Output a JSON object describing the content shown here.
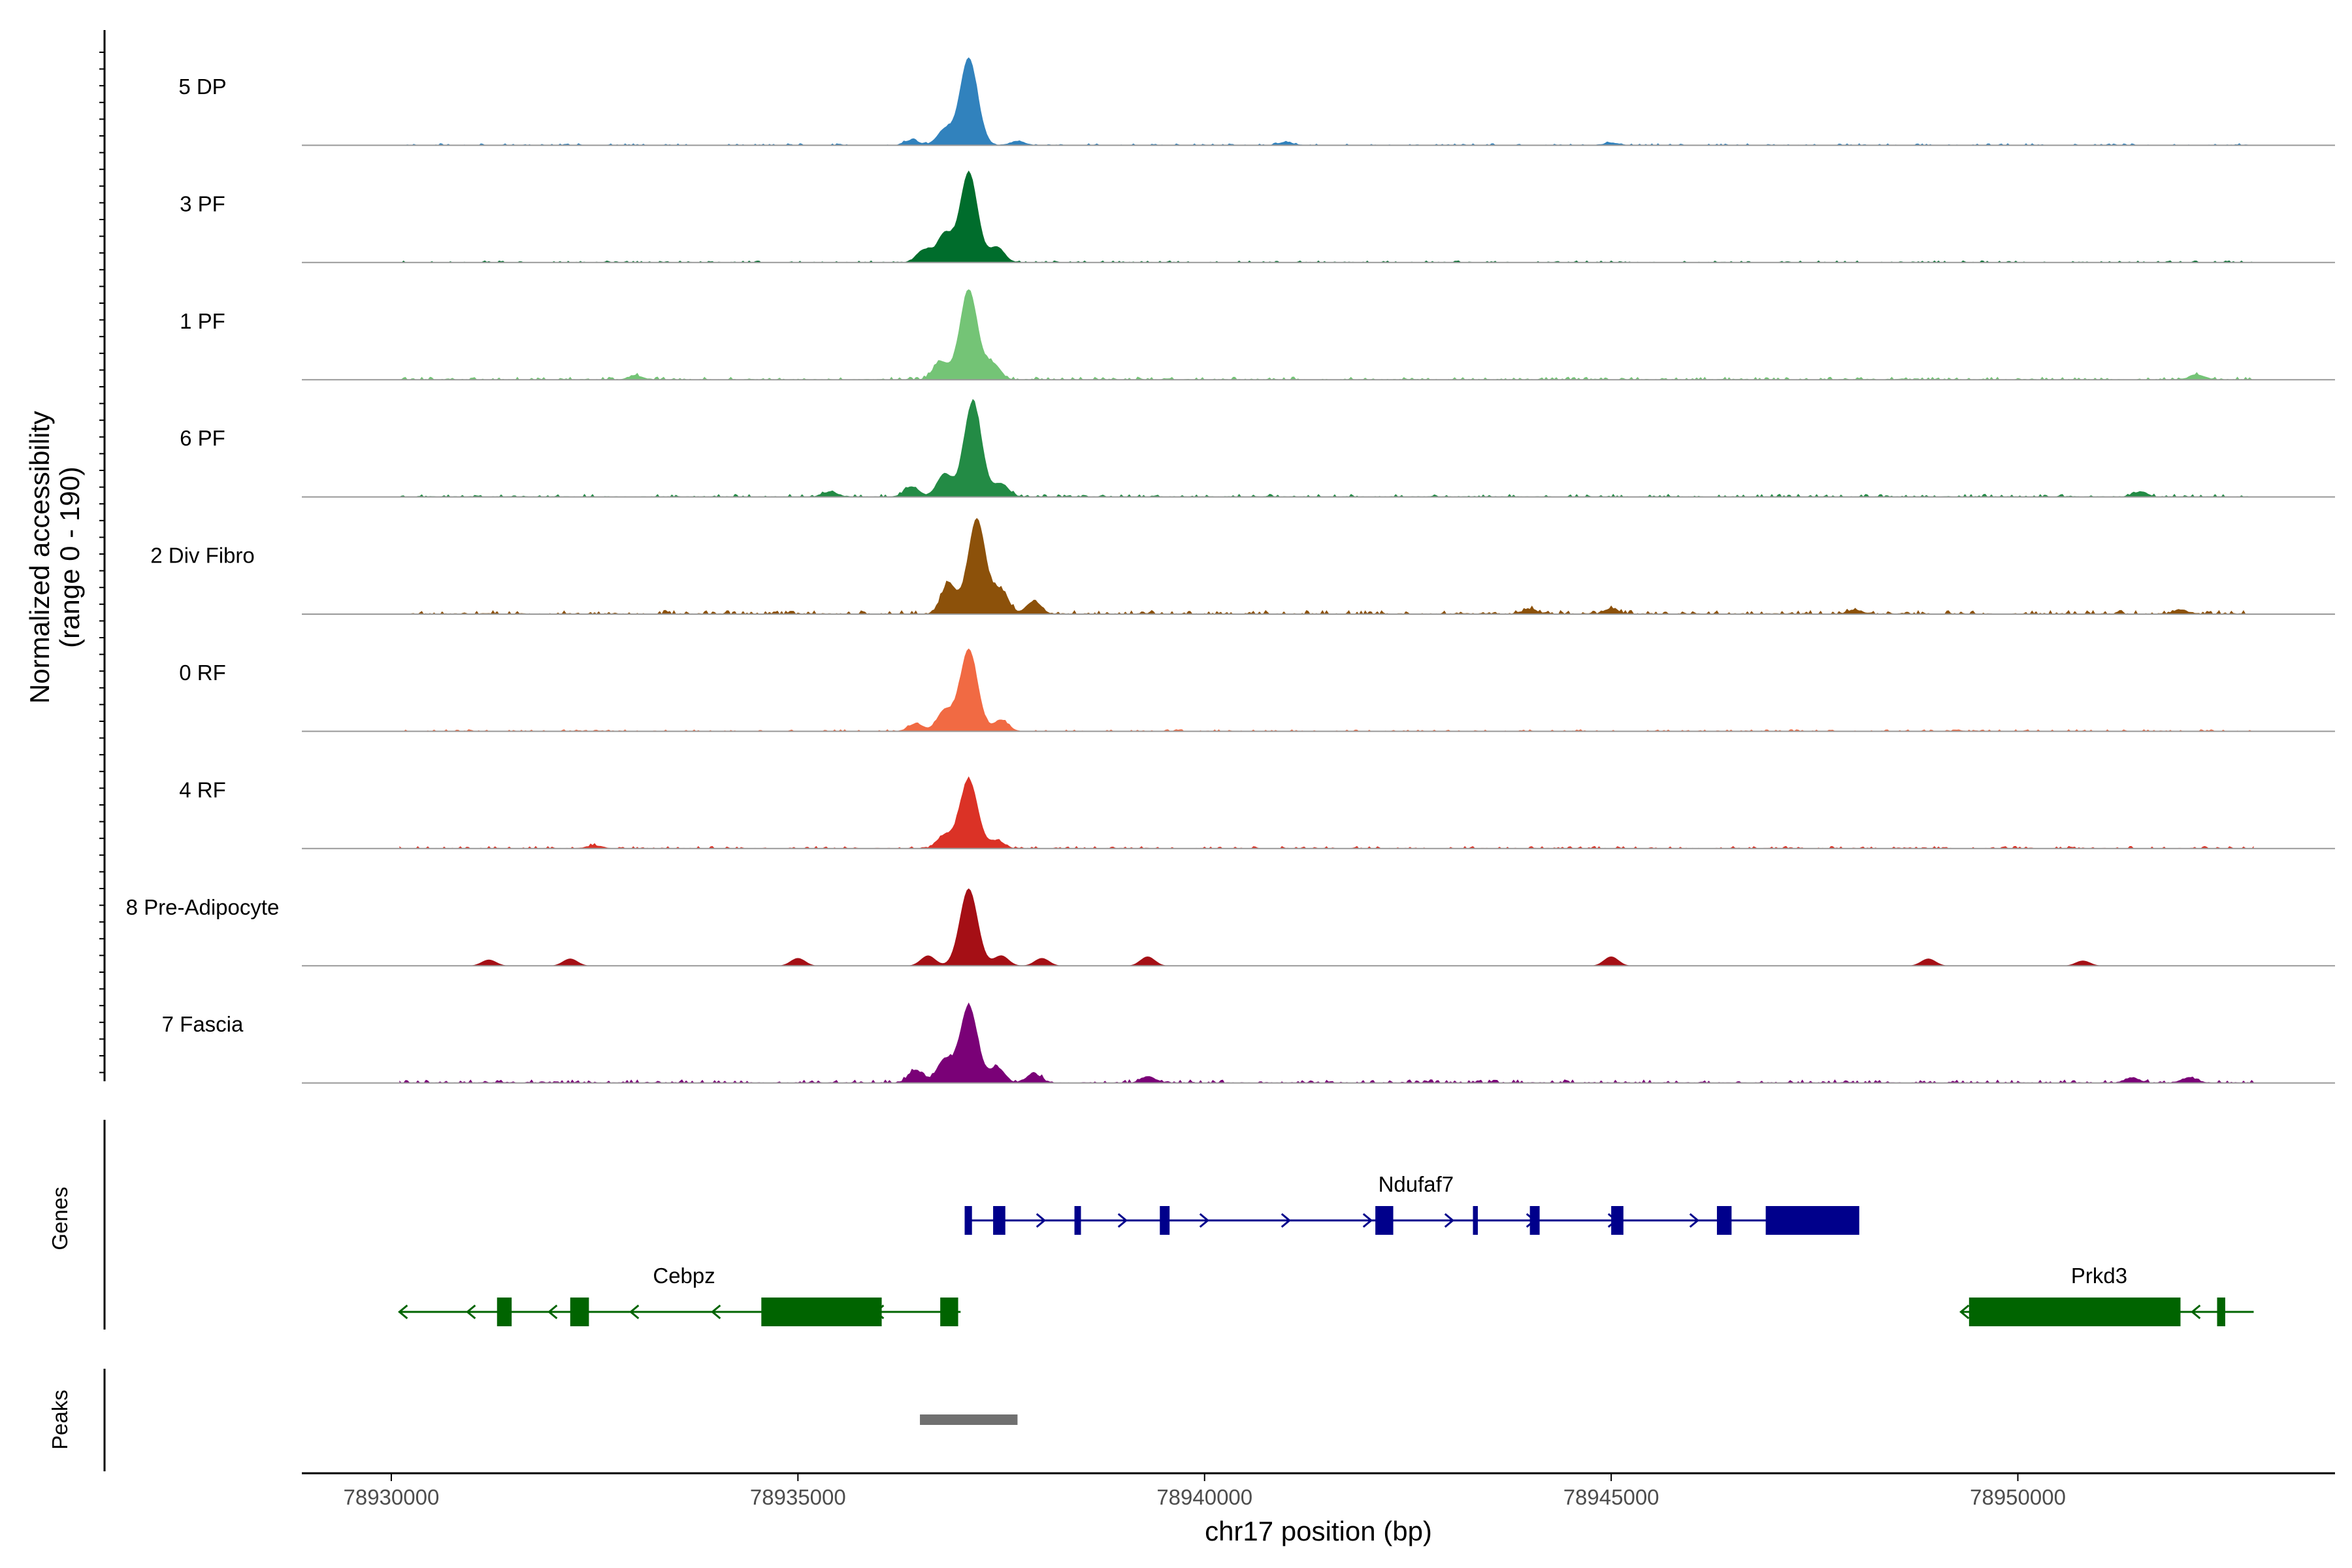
{
  "chart_data": {
    "type": "area",
    "title": "",
    "y_axis_title_line1": "Normalized accessibility",
    "y_axis_title_line2": "(range 0 - 190)",
    "ylim": [
      0,
      190
    ],
    "xlabel": "chr17 position (bp)",
    "xlim": [
      78928900,
      78953900
    ],
    "x_ticks": [
      78930000,
      78935000,
      78940000,
      78945000,
      78950000
    ],
    "x_tick_labels": [
      "78930000",
      "78935000",
      "78940000",
      "78945000",
      "78950000"
    ],
    "region_start": 78930100,
    "region_end": 78952900,
    "peak_centers": [
      78937100,
      78937300
    ],
    "tracks": [
      {
        "name": "5 DP",
        "color": "#3182BD",
        "peak_value": 170,
        "main_peak_center": 78937100,
        "background_level": 4,
        "secondary_peaks": [
          {
            "pos": 78936800,
            "value": 30
          },
          {
            "pos": 78936400,
            "value": 10
          },
          {
            "pos": 78937700,
            "value": 8
          },
          {
            "pos": 78941000,
            "value": 6
          },
          {
            "pos": 78945000,
            "value": 5
          }
        ]
      },
      {
        "name": "3 PF",
        "color": "#006D2C",
        "peak_value": 175,
        "main_peak_center": 78937100,
        "background_level": 4,
        "secondary_peaks": [
          {
            "pos": 78936800,
            "value": 55
          },
          {
            "pos": 78936550,
            "value": 25
          },
          {
            "pos": 78937450,
            "value": 30
          }
        ]
      },
      {
        "name": "1 PF",
        "color": "#74C476",
        "peak_value": 175,
        "main_peak_center": 78937100,
        "background_level": 6,
        "secondary_peaks": [
          {
            "pos": 78936750,
            "value": 35
          },
          {
            "pos": 78937400,
            "value": 30
          },
          {
            "pos": 78933000,
            "value": 8
          },
          {
            "pos": 78952200,
            "value": 10
          }
        ]
      },
      {
        "name": "6 PF",
        "color": "#238B45",
        "peak_value": 185,
        "main_peak_center": 78937150,
        "background_level": 6,
        "secondary_peaks": [
          {
            "pos": 78936800,
            "value": 45
          },
          {
            "pos": 78936400,
            "value": 20
          },
          {
            "pos": 78937500,
            "value": 25
          },
          {
            "pos": 78935400,
            "value": 10
          },
          {
            "pos": 78951500,
            "value": 10
          }
        ]
      },
      {
        "name": "2 Div Fibro",
        "color": "#8C510A",
        "peak_value": 185,
        "main_peak_center": 78937200,
        "background_level": 8,
        "secondary_peaks": [
          {
            "pos": 78936850,
            "value": 60
          },
          {
            "pos": 78937500,
            "value": 45
          },
          {
            "pos": 78937900,
            "value": 25
          },
          {
            "pos": 78944000,
            "value": 10
          },
          {
            "pos": 78945000,
            "value": 10
          },
          {
            "pos": 78948000,
            "value": 8
          },
          {
            "pos": 78952000,
            "value": 8
          }
        ]
      },
      {
        "name": "0 RF",
        "color": "#F16A43",
        "peak_value": 160,
        "main_peak_center": 78937100,
        "background_level": 4,
        "secondary_peaks": [
          {
            "pos": 78936800,
            "value": 40
          },
          {
            "pos": 78937500,
            "value": 22
          },
          {
            "pos": 78936450,
            "value": 15
          }
        ]
      },
      {
        "name": "4 RF",
        "color": "#DB3226",
        "peak_value": 135,
        "main_peak_center": 78937100,
        "background_level": 5,
        "secondary_peaks": [
          {
            "pos": 78936800,
            "value": 25
          },
          {
            "pos": 78937450,
            "value": 15
          },
          {
            "pos": 78932500,
            "value": 6
          }
        ]
      },
      {
        "name": "8 Pre-Adipocyte",
        "color": "#A50F15",
        "peak_value": 150,
        "main_peak_center": 78937100,
        "background_level": 0,
        "secondary_peaks": [
          {
            "pos": 78936600,
            "value": 20
          },
          {
            "pos": 78937500,
            "value": 20
          },
          {
            "pos": 78938000,
            "value": 15
          },
          {
            "pos": 78931200,
            "value": 12
          },
          {
            "pos": 78932200,
            "value": 14
          },
          {
            "pos": 78935000,
            "value": 15
          },
          {
            "pos": 78939300,
            "value": 18
          },
          {
            "pos": 78945000,
            "value": 18
          },
          {
            "pos": 78948900,
            "value": 14
          },
          {
            "pos": 78950800,
            "value": 10
          }
        ]
      },
      {
        "name": "7 Fascia",
        "color": "#7A0177",
        "peak_value": 150,
        "main_peak_center": 78937100,
        "background_level": 7,
        "secondary_peaks": [
          {
            "pos": 78936800,
            "value": 45
          },
          {
            "pos": 78936450,
            "value": 25
          },
          {
            "pos": 78937450,
            "value": 30
          },
          {
            "pos": 78937900,
            "value": 18
          },
          {
            "pos": 78939300,
            "value": 12
          },
          {
            "pos": 78951400,
            "value": 10
          },
          {
            "pos": 78952100,
            "value": 10
          }
        ]
      }
    ],
    "genes_panel_label": "Genes",
    "peaks_panel_label": "Peaks",
    "genes": [
      {
        "name": "Ndufaf7",
        "strand": "+",
        "color": "#00008B",
        "start": 78937100,
        "end": 78948000,
        "label_pos": 78942600,
        "exons": [
          [
            78937050,
            78937140
          ],
          [
            78937400,
            78937550
          ],
          [
            78938400,
            78938480
          ],
          [
            78939450,
            78939570
          ],
          [
            78942100,
            78942320
          ],
          [
            78943300,
            78943360
          ],
          [
            78944000,
            78944120
          ],
          [
            78945000,
            78945150
          ],
          [
            78946300,
            78946480
          ],
          [
            78946900,
            78948050
          ]
        ]
      },
      {
        "name": "Cebpz",
        "strand": "-",
        "color": "#006400",
        "start": 78930100,
        "end": 78937000,
        "label_pos": 78933600,
        "exons": [
          [
            78931300,
            78931480
          ],
          [
            78932200,
            78932430
          ],
          [
            78934550,
            78936030
          ],
          [
            78936750,
            78936970
          ]
        ]
      },
      {
        "name": "Prkd3",
        "strand": "-",
        "color": "#006400",
        "start": 78949300,
        "end": 78952900,
        "label_pos": 78951000,
        "exons": [
          [
            78949400,
            78952000
          ],
          [
            78952450,
            78952550
          ]
        ]
      }
    ],
    "peaks": [
      {
        "start": 78936500,
        "end": 78937700
      }
    ]
  }
}
